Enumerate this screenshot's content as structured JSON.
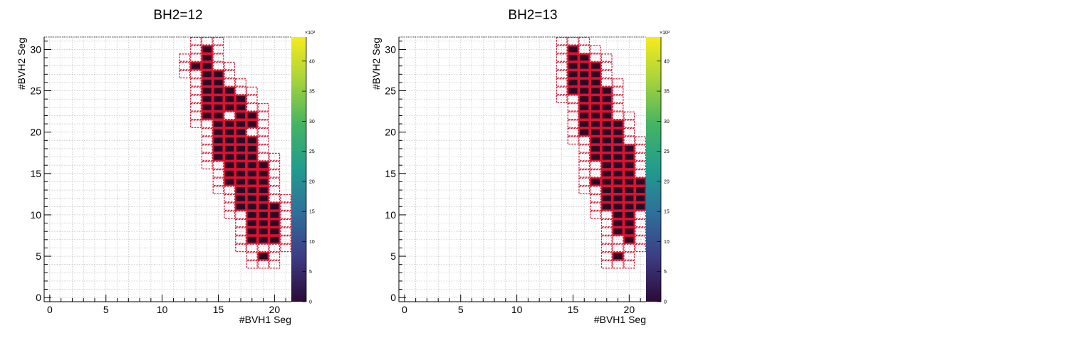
{
  "chart_data": [
    {
      "type": "heatmap",
      "title": "BH2=12",
      "xlabel": "#BVH1 Seg",
      "ylabel": "#BVH2 Seg",
      "xlim": [
        -0.5,
        21.5
      ],
      "ylim": [
        -0.5,
        31.5
      ],
      "x_ticks": [
        0,
        5,
        10,
        15,
        20
      ],
      "y_ticks": [
        0,
        5,
        10,
        15,
        20,
        25,
        30
      ],
      "grid": true,
      "colorbar": {
        "scale_label": "×10³",
        "ticks": [
          0,
          5,
          10,
          15,
          20,
          25,
          30,
          35,
          40
        ],
        "range": [
          0,
          44
        ]
      },
      "filled_rows": [
        {
          "y": 5,
          "x": [
            19
          ]
        },
        {
          "y": 7,
          "x": [
            18,
            19,
            20
          ]
        },
        {
          "y": 8,
          "x": [
            18,
            19,
            20
          ]
        },
        {
          "y": 9,
          "x": [
            18,
            19,
            20
          ]
        },
        {
          "y": 10,
          "x": [
            18,
            19,
            20
          ]
        },
        {
          "y": 11,
          "x": [
            17,
            18,
            19,
            20
          ]
        },
        {
          "y": 12,
          "x": [
            17,
            18,
            19
          ]
        },
        {
          "y": 13,
          "x": [
            17,
            18,
            19
          ]
        },
        {
          "y": 14,
          "x": [
            16,
            17,
            18,
            19
          ]
        },
        {
          "y": 15,
          "x": [
            16,
            17,
            18,
            19
          ]
        },
        {
          "y": 16,
          "x": [
            16,
            17,
            18,
            19
          ]
        },
        {
          "y": 17,
          "x": [
            15,
            16,
            17,
            18
          ]
        },
        {
          "y": 18,
          "x": [
            15,
            16,
            17,
            18
          ]
        },
        {
          "y": 19,
          "x": [
            15,
            16,
            17,
            18
          ]
        },
        {
          "y": 20,
          "x": [
            15,
            16,
            17
          ]
        },
        {
          "y": 21,
          "x": [
            15,
            16,
            17,
            18
          ]
        },
        {
          "y": 22,
          "x": [
            14,
            15,
            17,
            18
          ]
        },
        {
          "y": 23,
          "x": [
            14,
            15,
            16,
            17
          ]
        },
        {
          "y": 24,
          "x": [
            14,
            15,
            16,
            17
          ]
        },
        {
          "y": 25,
          "x": [
            14,
            15,
            16
          ]
        },
        {
          "y": 26,
          "x": [
            14,
            15
          ]
        },
        {
          "y": 27,
          "x": [
            14,
            15
          ]
        },
        {
          "y": 28,
          "x": [
            13,
            14
          ]
        },
        {
          "y": 29,
          "x": [
            14
          ]
        },
        {
          "y": 30,
          "x": [
            14
          ]
        }
      ]
    },
    {
      "type": "heatmap",
      "title": "BH2=13",
      "xlabel": "#BVH1 Seg",
      "ylabel": "#BVH2 Seg",
      "xlim": [
        -0.5,
        21.5
      ],
      "ylim": [
        -0.5,
        31.5
      ],
      "x_ticks": [
        0,
        5,
        10,
        15,
        20
      ],
      "y_ticks": [
        0,
        5,
        10,
        15,
        20,
        25,
        30
      ],
      "grid": true,
      "colorbar": {
        "scale_label": "×10³",
        "ticks": [
          0,
          5,
          10,
          15,
          20,
          25,
          30,
          35,
          40
        ],
        "range": [
          0,
          44
        ]
      },
      "filled_rows": [
        {
          "y": 5,
          "x": [
            19
          ]
        },
        {
          "y": 7,
          "x": [
            20
          ]
        },
        {
          "y": 8,
          "x": [
            19,
            20
          ]
        },
        {
          "y": 9,
          "x": [
            19,
            20
          ]
        },
        {
          "y": 10,
          "x": [
            19,
            20
          ]
        },
        {
          "y": 11,
          "x": [
            18,
            19,
            20,
            21
          ]
        },
        {
          "y": 12,
          "x": [
            18,
            19,
            20,
            21
          ]
        },
        {
          "y": 13,
          "x": [
            18,
            19,
            20,
            21
          ]
        },
        {
          "y": 14,
          "x": [
            17,
            18,
            19,
            20,
            21
          ]
        },
        {
          "y": 15,
          "x": [
            18,
            19,
            20
          ]
        },
        {
          "y": 16,
          "x": [
            18,
            19,
            20
          ]
        },
        {
          "y": 17,
          "x": [
            17,
            18,
            19,
            20
          ]
        },
        {
          "y": 18,
          "x": [
            17,
            18,
            19,
            20
          ]
        },
        {
          "y": 19,
          "x": [
            17,
            18,
            19
          ]
        },
        {
          "y": 20,
          "x": [
            16,
            17,
            18,
            19
          ]
        },
        {
          "y": 21,
          "x": [
            16,
            17,
            18,
            19
          ]
        },
        {
          "y": 22,
          "x": [
            16,
            17,
            18
          ]
        },
        {
          "y": 23,
          "x": [
            16,
            17,
            18
          ]
        },
        {
          "y": 24,
          "x": [
            16,
            17,
            18
          ]
        },
        {
          "y": 25,
          "x": [
            15,
            16,
            17,
            18
          ]
        },
        {
          "y": 26,
          "x": [
            15,
            16,
            17
          ]
        },
        {
          "y": 27,
          "x": [
            15,
            16,
            17
          ]
        },
        {
          "y": 28,
          "x": [
            15,
            16,
            17
          ]
        },
        {
          "y": 29,
          "x": [
            15,
            16
          ]
        },
        {
          "y": 30,
          "x": [
            15
          ]
        }
      ]
    }
  ],
  "colors": {
    "cell_fill": "#2a0b26",
    "cell_border": "#e0102f",
    "empty_border": "#e0102f",
    "grid": "#b4b4b4",
    "frame": "#000000",
    "colorbar_stops": [
      "#2b0a38",
      "#3d3d84",
      "#2f6e9a",
      "#219b8e",
      "#44b462",
      "#a8d43b",
      "#f7ea1c"
    ]
  }
}
